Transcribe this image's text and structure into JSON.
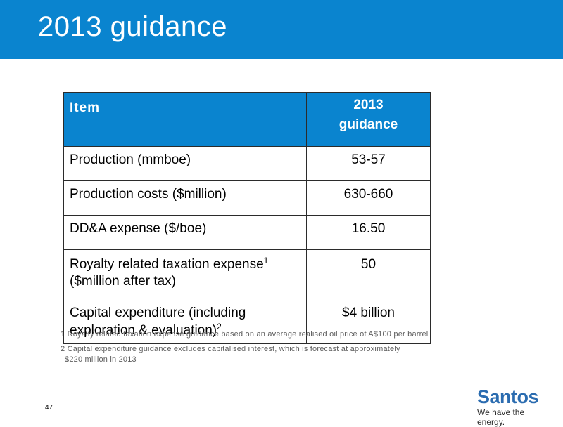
{
  "header": {
    "title": "2013 guidance"
  },
  "table": {
    "headers": {
      "item": "Item",
      "year_line1": "2013",
      "year_line2": "guidance"
    },
    "rows": [
      {
        "item": "Production (mmboe)",
        "value": "53-57"
      },
      {
        "item": "Production costs ($million)",
        "value": "630-660"
      },
      {
        "item": "DD&A expense ($/boe)",
        "value": "16.50"
      },
      {
        "item_line1": "Royalty related taxation expense",
        "sup": "1",
        "item_line2": "($million after tax)",
        "value": "50"
      },
      {
        "item_line1": "Capital expenditure (including",
        "item_line2": "exploration & evaluation)",
        "sup": "2",
        "value": "$4 billion"
      }
    ]
  },
  "footnotes": {
    "fn1": "1 Royalty related taxation expense guidance based on an average realised oil price of A$100 per barrel",
    "fn2_line1": "2 Capital expenditure guidance excludes capitalised interest, which is forecast at approximately",
    "fn2_line2": "$220 million in 2013"
  },
  "page_number": "47",
  "logo": {
    "word": "Santos",
    "tagline": "We have the energy."
  },
  "colors": {
    "brand_blue": "#0a84cf",
    "logo_blue": "#2b6cb0"
  }
}
